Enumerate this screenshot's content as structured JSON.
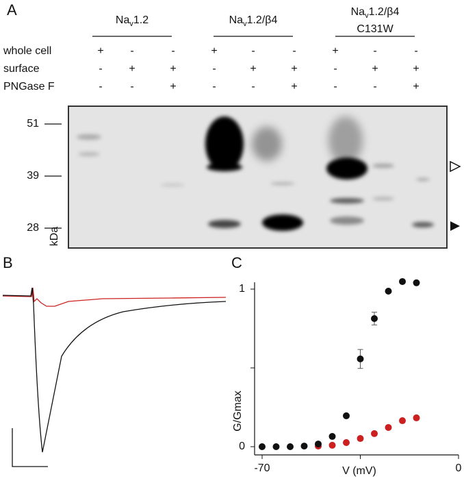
{
  "panels": [
    "A",
    "B",
    "C"
  ],
  "blot": {
    "groups": [
      {
        "name": [
          "Na",
          "v",
          "1.2"
        ]
      },
      {
        "name": [
          "Na",
          "v",
          "1.2/β4"
        ]
      },
      {
        "name": [
          "Na",
          "v",
          "1.2/β4"
        ],
        "line2": "C131W"
      }
    ],
    "rows": [
      {
        "label": "whole cell",
        "marks": [
          "+",
          "-",
          "-",
          "+",
          "-",
          "-",
          "+",
          "-",
          "-"
        ]
      },
      {
        "label": "surface",
        "marks": [
          "-",
          "+",
          "+",
          "-",
          "+",
          "+",
          "-",
          "+",
          "+"
        ]
      },
      {
        "label": "PNGase F",
        "marks": [
          "-",
          "-",
          "+",
          "-",
          "-",
          "+",
          "-",
          "-",
          "+"
        ]
      }
    ],
    "markers": [
      51,
      39,
      28
    ],
    "marker_unit": "kDa"
  },
  "chart_data": {
    "type": "scatter",
    "x_label": "V (mV)",
    "y_label": "G/Gmax",
    "xlim": [
      -70,
      0
    ],
    "ylim": [
      0,
      1
    ],
    "xticks": [
      -70,
      0
    ],
    "xticks_unlabeled": [
      -35
    ],
    "yticks": [
      0,
      1
    ],
    "yticks_unlabeled": [
      0.5
    ],
    "series": [
      {
        "color": "#111111",
        "x": [
          -70,
          -65,
          -60,
          -55,
          -50,
          -45,
          -40,
          -35,
          -30,
          -25,
          -20,
          -15
        ],
        "values": [
          0,
          0,
          0,
          0.004,
          0.017,
          0.065,
          0.196,
          0.557,
          0.813,
          0.987,
          1.048,
          1.04
        ],
        "errors": [
          null,
          null,
          null,
          null,
          null,
          null,
          null,
          0.06,
          0.04,
          null,
          null,
          null
        ]
      },
      {
        "color": "#cc1f1f",
        "x": [
          -50,
          -45,
          -40,
          -35,
          -30,
          -25,
          -20,
          -15
        ],
        "values": [
          0.004,
          0.009,
          0.026,
          0.052,
          0.083,
          0.122,
          0.165,
          0.183
        ]
      }
    ]
  }
}
